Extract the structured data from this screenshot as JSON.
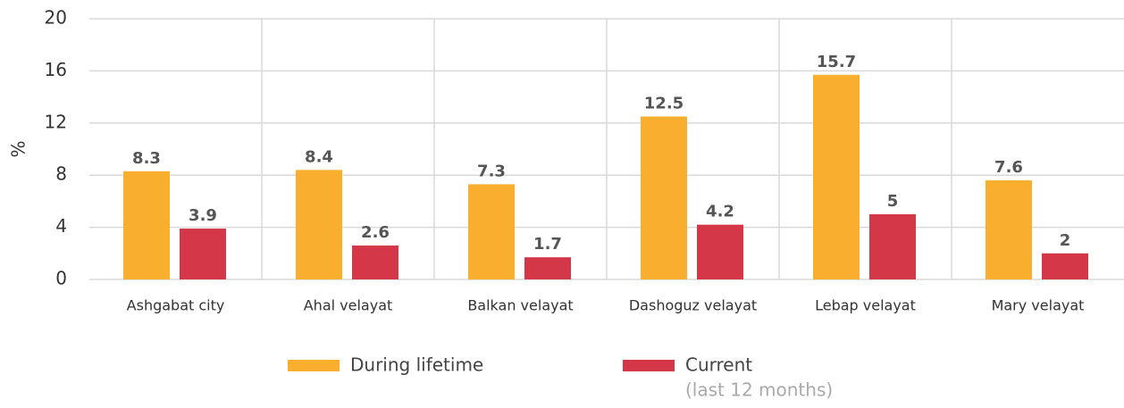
{
  "chart_data": {
    "type": "bar",
    "ylabel": "%",
    "categories": [
      "Ashgabat city",
      "Ahal velayat",
      "Balkan velayat",
      "Dashoguz velayat",
      "Lebap velayat",
      "Mary velayat"
    ],
    "series": [
      {
        "name": "During lifetime",
        "color": "#f9ae2e",
        "values": [
          8.3,
          8.4,
          7.3,
          12.5,
          15.7,
          7.6
        ]
      },
      {
        "name": "Current",
        "color": "#d43747",
        "values": [
          3.9,
          2.6,
          1.7,
          4.2,
          5,
          2
        ]
      }
    ],
    "legend_note": "(last 12 months)",
    "ylim": [
      0,
      20
    ],
    "yticks": [
      0,
      4,
      8,
      12,
      16,
      20
    ],
    "grid": true
  }
}
